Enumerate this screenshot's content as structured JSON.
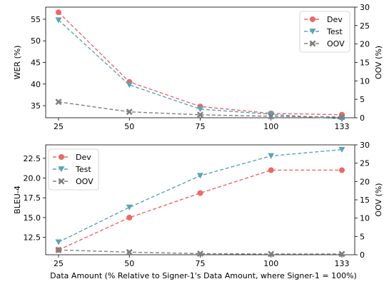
{
  "figure": {
    "xlabel": "Data Amount (% Relative to Signer-1's Data Amount, where Signer-1 = 100%)"
  },
  "chart_data": [
    {
      "type": "line",
      "categories": [
        "25",
        "50",
        "75",
        "100",
        "133"
      ],
      "ylabel": "WER (%)",
      "y2label": "OOV (%)",
      "ylim": [
        32.2,
        57.8
      ],
      "y2lim": [
        0,
        30
      ],
      "yticks": [
        "35",
        "40",
        "45",
        "50",
        "55"
      ],
      "y2ticks": [
        "0",
        "5",
        "10",
        "15",
        "20",
        "25",
        "30"
      ],
      "legend_position": "top-right",
      "series": [
        {
          "name": "Dev",
          "axis": "left",
          "marker": "circle",
          "color": "#ee6666",
          "values": [
            56.6,
            40.5,
            34.8,
            33.2,
            32.9
          ]
        },
        {
          "name": "Test",
          "axis": "left",
          "marker": "triangle-down",
          "color": "#5aa5b5",
          "values": [
            54.8,
            39.8,
            34.2,
            33.0,
            31.9
          ]
        },
        {
          "name": "OOV",
          "axis": "right",
          "marker": "x",
          "color": "#808080",
          "values": [
            4.3,
            1.6,
            0.8,
            0.4,
            0.2
          ]
        }
      ]
    },
    {
      "type": "line",
      "categories": [
        "25",
        "50",
        "75",
        "100",
        "133"
      ],
      "ylabel": "BLEU-4",
      "y2label": "OOV (%)",
      "ylim": [
        10.3,
        24.2
      ],
      "y2lim": [
        0,
        30
      ],
      "yticks": [
        "12.5",
        "15.0",
        "17.5",
        "20.0",
        "22.5"
      ],
      "y2ticks": [
        "0",
        "5",
        "10",
        "15",
        "20",
        "25",
        "30"
      ],
      "legend_position": "top-left",
      "series": [
        {
          "name": "Dev",
          "axis": "left",
          "marker": "circle",
          "color": "#ee6666",
          "values": [
            10.9,
            15.0,
            18.1,
            21.0,
            21.0
          ]
        },
        {
          "name": "Test",
          "axis": "left",
          "marker": "triangle-down",
          "color": "#5aa5b5",
          "values": [
            11.9,
            16.3,
            20.3,
            22.8,
            23.6
          ]
        },
        {
          "name": "OOV",
          "axis": "right",
          "marker": "x",
          "color": "#808080",
          "values": [
            1.3,
            0.7,
            0.3,
            0.2,
            0.2
          ]
        }
      ]
    }
  ]
}
